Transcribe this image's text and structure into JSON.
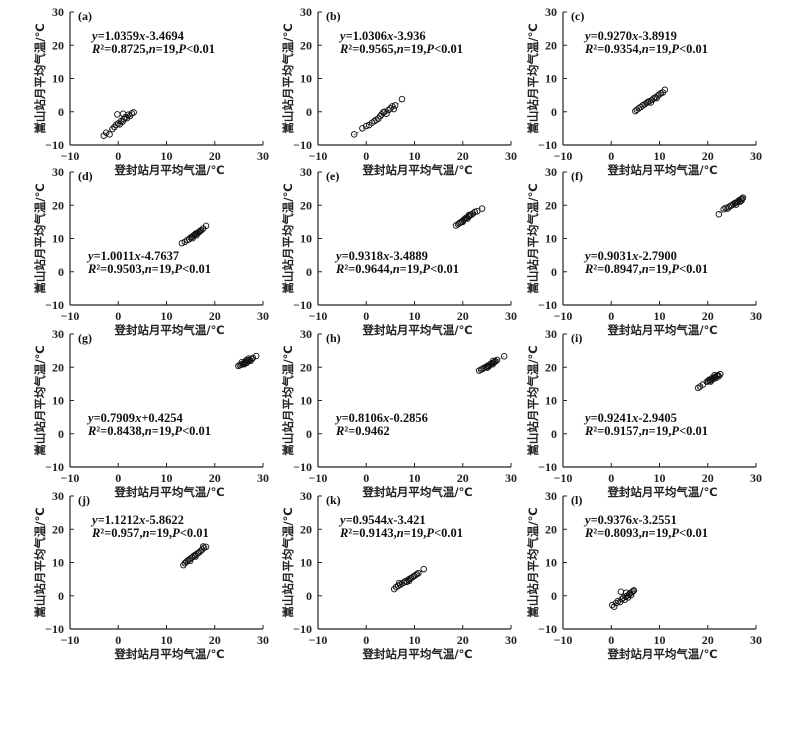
{
  "chart_data": [
    {
      "type": "scatter",
      "panel_label": "(a)",
      "xlabel": "登封站月平均气温/℃",
      "ylabel": "嵩山站月平均气温/℃",
      "xlim": [
        -10,
        30
      ],
      "ylim": [
        -10,
        30
      ],
      "xticks": [
        -10,
        0,
        10,
        20,
        30
      ],
      "yticks": [
        -10,
        0,
        10,
        20,
        30
      ],
      "equation": "y=1.0359x-3.4694",
      "stats": "R²=0.8725,n=19,P<0.01",
      "points": [
        [
          -3.0,
          -7.2
        ],
        [
          -2.5,
          -6.3
        ],
        [
          -1.8,
          -6.8
        ],
        [
          -1.2,
          -5.2
        ],
        [
          -0.8,
          -4.6
        ],
        [
          -0.4,
          -3.9
        ],
        [
          0.0,
          -3.5
        ],
        [
          0.3,
          -3.8
        ],
        [
          0.6,
          -2.8
        ],
        [
          0.9,
          -3.0
        ],
        [
          1.2,
          -2.2
        ],
        [
          1.5,
          -1.6
        ],
        [
          1.8,
          -1.9
        ],
        [
          2.1,
          -0.9
        ],
        [
          2.4,
          -1.3
        ],
        [
          2.8,
          -0.5
        ],
        [
          3.2,
          -0.2
        ],
        [
          -0.2,
          -0.8
        ],
        [
          1.0,
          -0.6
        ]
      ]
    },
    {
      "type": "scatter",
      "panel_label": "(b)",
      "xlabel": "登封站月平均气温/℃",
      "ylabel": "嵩山站月平均气温/℃",
      "xlim": [
        -10,
        30
      ],
      "ylim": [
        -10,
        30
      ],
      "xticks": [
        -10,
        0,
        10,
        20,
        30
      ],
      "yticks": [
        -10,
        0,
        10,
        20,
        30
      ],
      "equation": "y=1.0306x-3.936",
      "stats": "R²=0.9565,n=19,P<0.01",
      "points": [
        [
          -2.5,
          -6.8
        ],
        [
          -0.8,
          -5.0
        ],
        [
          0.0,
          -4.3
        ],
        [
          0.6,
          -4.0
        ],
        [
          1.2,
          -3.3
        ],
        [
          1.7,
          -2.8
        ],
        [
          2.1,
          -2.4
        ],
        [
          2.5,
          -2.1
        ],
        [
          2.9,
          -1.3
        ],
        [
          3.2,
          -0.8
        ],
        [
          3.5,
          -0.2
        ],
        [
          3.8,
          0.0
        ],
        [
          4.2,
          -0.6
        ],
        [
          4.6,
          0.5
        ],
        [
          5.0,
          1.0
        ],
        [
          5.4,
          1.6
        ],
        [
          5.7,
          0.8
        ],
        [
          6.0,
          1.9
        ],
        [
          7.4,
          3.8
        ]
      ]
    },
    {
      "type": "scatter",
      "panel_label": "(c)",
      "xlabel": "登封站月平均气温/℃",
      "ylabel": "嵩山站月平均气温/℃",
      "xlim": [
        -10,
        30
      ],
      "ylim": [
        -10,
        30
      ],
      "xticks": [
        -10,
        0,
        10,
        20,
        30
      ],
      "yticks": [
        -10,
        0,
        10,
        20,
        30
      ],
      "equation": "y=0.9270x-3.8919",
      "stats": "R²=0.9354,n=19,P<0.01",
      "points": [
        [
          5.0,
          0.2
        ],
        [
          5.3,
          0.6
        ],
        [
          5.7,
          1.0
        ],
        [
          6.1,
          1.4
        ],
        [
          6.5,
          1.9
        ],
        [
          6.9,
          2.2
        ],
        [
          7.3,
          2.6
        ],
        [
          7.6,
          2.9
        ],
        [
          7.9,
          3.2
        ],
        [
          8.2,
          2.8
        ],
        [
          8.5,
          3.6
        ],
        [
          8.8,
          4.0
        ],
        [
          9.1,
          4.3
        ],
        [
          9.4,
          4.1
        ],
        [
          9.7,
          4.9
        ],
        [
          10.0,
          5.2
        ],
        [
          10.3,
          5.6
        ],
        [
          10.7,
          5.8
        ],
        [
          11.1,
          6.6
        ]
      ]
    },
    {
      "type": "scatter",
      "panel_label": "(d)",
      "xlabel": "登封站月平均气温/℃",
      "ylabel": "嵩山站月平均气温/℃",
      "xlim": [
        -10,
        30
      ],
      "ylim": [
        -10,
        30
      ],
      "xticks": [
        -10,
        0,
        10,
        20,
        30
      ],
      "yticks": [
        -10,
        0,
        10,
        20,
        30
      ],
      "equation": "y=1.0011x-4.7637",
      "stats": "R²=0.9503,n=19,P<0.01",
      "points": [
        [
          13.2,
          8.6
        ],
        [
          13.8,
          9.0
        ],
        [
          14.3,
          9.5
        ],
        [
          14.7,
          9.8
        ],
        [
          15.0,
          10.3
        ],
        [
          15.3,
          10.5
        ],
        [
          15.6,
          10.9
        ],
        [
          15.8,
          11.1
        ],
        [
          16.0,
          11.3
        ],
        [
          16.2,
          11.0
        ],
        [
          16.4,
          11.6
        ],
        [
          16.6,
          11.8
        ],
        [
          16.8,
          12.0
        ],
        [
          17.0,
          12.3
        ],
        [
          17.2,
          12.5
        ],
        [
          15.4,
          10.1
        ],
        [
          16.1,
          11.5
        ],
        [
          17.6,
          13.0
        ],
        [
          18.2,
          13.8
        ]
      ]
    },
    {
      "type": "scatter",
      "panel_label": "(e)",
      "xlabel": "登封站月平均气温/℃",
      "ylabel": "嵩山站月平均气温/℃",
      "xlim": [
        -10,
        30
      ],
      "ylim": [
        -10,
        30
      ],
      "xticks": [
        -10,
        0,
        10,
        20,
        30
      ],
      "yticks": [
        -10,
        0,
        10,
        20,
        30
      ],
      "equation": "y=0.9318x-3.4889",
      "stats": "R²=0.9644,n=19,P<0.01",
      "points": [
        [
          18.6,
          13.9
        ],
        [
          19.0,
          14.3
        ],
        [
          19.3,
          14.6
        ],
        [
          19.6,
          14.9
        ],
        [
          19.9,
          15.2
        ],
        [
          20.2,
          15.6
        ],
        [
          20.4,
          15.8
        ],
        [
          20.6,
          16.1
        ],
        [
          20.8,
          16.3
        ],
        [
          21.0,
          16.0
        ],
        [
          21.2,
          16.6
        ],
        [
          21.5,
          16.9
        ],
        [
          21.8,
          17.2
        ],
        [
          22.1,
          17.5
        ],
        [
          22.5,
          18.0
        ],
        [
          20.0,
          15.0
        ],
        [
          21.3,
          17.1
        ],
        [
          23.0,
          18.2
        ],
        [
          24.0,
          19.0
        ]
      ]
    },
    {
      "type": "scatter",
      "panel_label": "(f)",
      "xlabel": "登封站月平均气温/℃",
      "ylabel": "嵩山站月平均气温/℃",
      "xlim": [
        -10,
        30
      ],
      "ylim": [
        -10,
        30
      ],
      "xticks": [
        -10,
        0,
        10,
        20,
        30
      ],
      "yticks": [
        -10,
        0,
        10,
        20,
        30
      ],
      "equation": "y=0.9031x-2.7900",
      "stats": "R²=0.8947,n=19,P<0.01",
      "points": [
        [
          22.3,
          17.3
        ],
        [
          23.3,
          18.8
        ],
        [
          23.7,
          19.2
        ],
        [
          24.1,
          19.0
        ],
        [
          24.4,
          19.5
        ],
        [
          24.7,
          19.8
        ],
        [
          25.0,
          20.0
        ],
        [
          25.3,
          20.3
        ],
        [
          25.6,
          20.6
        ],
        [
          25.9,
          20.2
        ],
        [
          26.1,
          20.9
        ],
        [
          26.3,
          21.2
        ],
        [
          26.5,
          21.5
        ],
        [
          26.7,
          21.1
        ],
        [
          26.9,
          21.8
        ],
        [
          27.1,
          22.0
        ],
        [
          27.3,
          22.3
        ],
        [
          27.0,
          21.4
        ],
        [
          25.8,
          20.8
        ]
      ]
    },
    {
      "type": "scatter",
      "panel_label": "(g)",
      "xlabel": "登封站月平均气温/℃",
      "ylabel": "嵩山站月平均气温/℃",
      "xlim": [
        -10,
        30
      ],
      "ylim": [
        -10,
        30
      ],
      "xticks": [
        -10,
        0,
        10,
        20,
        30
      ],
      "yticks": [
        -10,
        0,
        10,
        20,
        30
      ],
      "equation": "y=0.7909x+0.4254",
      "stats": "R²=0.8438,n=19,P<0.01",
      "points": [
        [
          24.9,
          20.4
        ],
        [
          25.2,
          20.6
        ],
        [
          25.5,
          20.8
        ],
        [
          25.8,
          21.0
        ],
        [
          26.0,
          21.2
        ],
        [
          26.2,
          21.4
        ],
        [
          26.4,
          21.6
        ],
        [
          26.6,
          21.3
        ],
        [
          26.8,
          21.8
        ],
        [
          27.0,
          22.0
        ],
        [
          27.2,
          22.2
        ],
        [
          27.4,
          21.9
        ],
        [
          27.6,
          22.4
        ],
        [
          27.0,
          22.6
        ],
        [
          26.5,
          22.1
        ],
        [
          25.6,
          21.5
        ],
        [
          26.1,
          20.9
        ],
        [
          27.9,
          22.8
        ],
        [
          28.6,
          23.4
        ]
      ]
    },
    {
      "type": "scatter",
      "panel_label": "(h)",
      "xlabel": "登封站月平均气温/℃",
      "ylabel": "嵩山站月平均气温/℃",
      "xlim": [
        -10,
        30
      ],
      "ylim": [
        -10,
        30
      ],
      "xticks": [
        -10,
        0,
        10,
        20,
        30
      ],
      "yticks": [
        -10,
        0,
        10,
        20,
        30
      ],
      "equation": "y=0.8106x-0.2856",
      "stats": "R²=0.9462",
      "points": [
        [
          23.4,
          19.0
        ],
        [
          23.8,
          19.3
        ],
        [
          24.1,
          19.5
        ],
        [
          24.4,
          19.8
        ],
        [
          24.7,
          20.0
        ],
        [
          25.0,
          20.2
        ],
        [
          25.2,
          20.5
        ],
        [
          25.4,
          20.3
        ],
        [
          25.6,
          20.7
        ],
        [
          25.8,
          21.0
        ],
        [
          26.0,
          21.2
        ],
        [
          26.2,
          20.9
        ],
        [
          26.4,
          21.4
        ],
        [
          26.6,
          21.6
        ],
        [
          26.8,
          21.8
        ],
        [
          25.1,
          19.9
        ],
        [
          26.3,
          21.9
        ],
        [
          27.1,
          22.2
        ],
        [
          28.6,
          23.3
        ]
      ]
    },
    {
      "type": "scatter",
      "panel_label": "(i)",
      "xlabel": "登封站月平均气温/℃",
      "ylabel": "嵩山站月平均气温/℃",
      "xlim": [
        -10,
        30
      ],
      "ylim": [
        -10,
        30
      ],
      "xticks": [
        -10,
        0,
        10,
        20,
        30
      ],
      "yticks": [
        -10,
        0,
        10,
        20,
        30
      ],
      "equation": "y=0.9241x-2.9405",
      "stats": "R²=0.9157,n=19,P<0.01",
      "points": [
        [
          18.0,
          13.8
        ],
        [
          18.4,
          14.2
        ],
        [
          19.8,
          15.6
        ],
        [
          20.1,
          15.9
        ],
        [
          20.3,
          16.2
        ],
        [
          20.5,
          16.0
        ],
        [
          20.7,
          16.5
        ],
        [
          20.9,
          16.7
        ],
        [
          21.1,
          16.4
        ],
        [
          21.3,
          16.9
        ],
        [
          21.5,
          17.1
        ],
        [
          21.7,
          16.8
        ],
        [
          21.9,
          17.4
        ],
        [
          22.1,
          17.6
        ],
        [
          22.3,
          17.3
        ],
        [
          22.6,
          17.9
        ],
        [
          20.6,
          15.7
        ],
        [
          21.4,
          17.6
        ],
        [
          19.0,
          14.8
        ]
      ]
    },
    {
      "type": "scatter",
      "panel_label": "(j)",
      "xlabel": "登封站月平均气温/℃",
      "ylabel": "嵩山站月平均气温/℃",
      "xlim": [
        -10,
        30
      ],
      "ylim": [
        -10,
        30
      ],
      "xticks": [
        -10,
        0,
        10,
        20,
        30
      ],
      "yticks": [
        -10,
        0,
        10,
        20,
        30
      ],
      "equation": "y=1.1212x-5.8622",
      "stats": "R²=0.957,n=19,P<0.01",
      "points": [
        [
          13.5,
          9.2
        ],
        [
          13.8,
          9.8
        ],
        [
          14.1,
          10.2
        ],
        [
          14.4,
          10.6
        ],
        [
          14.7,
          10.9
        ],
        [
          15.0,
          11.2
        ],
        [
          15.3,
          11.5
        ],
        [
          15.6,
          11.9
        ],
        [
          15.9,
          12.2
        ],
        [
          16.2,
          12.5
        ],
        [
          16.5,
          12.8
        ],
        [
          16.8,
          13.1
        ],
        [
          17.1,
          13.5
        ],
        [
          17.4,
          13.9
        ],
        [
          17.8,
          14.4
        ],
        [
          18.2,
          14.7
        ],
        [
          14.9,
          10.5
        ],
        [
          16.0,
          11.8
        ],
        [
          17.6,
          14.8
        ]
      ]
    },
    {
      "type": "scatter",
      "panel_label": "(k)",
      "xlabel": "登封站月平均气温/℃",
      "ylabel": "嵩山站月平均气温/℃",
      "xlim": [
        -10,
        30
      ],
      "ylim": [
        -10,
        30
      ],
      "xticks": [
        -10,
        0,
        10,
        20,
        30
      ],
      "yticks": [
        -10,
        0,
        10,
        20,
        30
      ],
      "equation": "y=0.9544x-3.421",
      "stats": "R²=0.9143,n=19,P<0.01",
      "points": [
        [
          5.8,
          2.0
        ],
        [
          6.2,
          2.6
        ],
        [
          6.6,
          3.0
        ],
        [
          7.0,
          3.3
        ],
        [
          7.4,
          3.7
        ],
        [
          7.8,
          4.0
        ],
        [
          8.1,
          4.4
        ],
        [
          8.4,
          4.2
        ],
        [
          8.7,
          4.8
        ],
        [
          9.0,
          5.1
        ],
        [
          9.3,
          5.3
        ],
        [
          9.6,
          5.6
        ],
        [
          9.9,
          5.9
        ],
        [
          10.2,
          6.2
        ],
        [
          10.5,
          6.5
        ],
        [
          6.8,
          3.8
        ],
        [
          8.9,
          4.5
        ],
        [
          10.8,
          6.8
        ],
        [
          11.9,
          8.0
        ]
      ]
    },
    {
      "type": "scatter",
      "panel_label": "(l)",
      "xlabel": "登封站月平均气温/℃",
      "ylabel": "嵩山站月平均气温/℃",
      "xlim": [
        -10,
        30
      ],
      "ylim": [
        -10,
        30
      ],
      "xticks": [
        -10,
        0,
        10,
        20,
        30
      ],
      "yticks": [
        -10,
        0,
        10,
        20,
        30
      ],
      "equation": "y=0.9376x-3.2551",
      "stats": "R²=0.8093,n=19,P<0.01",
      "points": [
        [
          0.2,
          -2.8
        ],
        [
          0.6,
          -3.3
        ],
        [
          1.0,
          -2.2
        ],
        [
          1.4,
          -1.6
        ],
        [
          1.8,
          -1.9
        ],
        [
          2.2,
          -1.0
        ],
        [
          2.5,
          -0.6
        ],
        [
          2.8,
          -1.2
        ],
        [
          3.0,
          -0.3
        ],
        [
          3.3,
          0.0
        ],
        [
          3.5,
          -0.5
        ],
        [
          3.7,
          0.4
        ],
        [
          3.9,
          0.8
        ],
        [
          4.1,
          0.2
        ],
        [
          4.3,
          1.0
        ],
        [
          4.5,
          1.4
        ],
        [
          2.0,
          1.2
        ],
        [
          3.1,
          0.9
        ],
        [
          4.7,
          1.6
        ]
      ]
    }
  ]
}
